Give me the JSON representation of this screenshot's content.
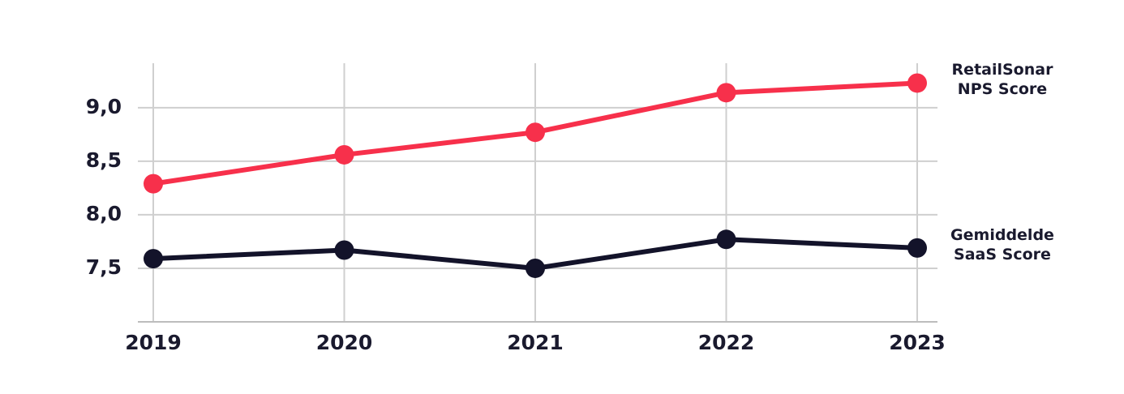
{
  "chart_data": {
    "type": "line",
    "x": [
      2019,
      2020,
      2021,
      2022,
      2023
    ],
    "xlim": [
      2019,
      2023
    ],
    "series": [
      {
        "name": "RetailSonar NPS Score",
        "color": "#f7304b",
        "values": [
          8.29,
          8.56,
          8.77,
          9.14,
          9.23
        ]
      },
      {
        "name": "Gemiddelde SaaS Score",
        "color": "#13132a",
        "values": [
          7.59,
          7.67,
          7.5,
          7.77,
          7.69
        ]
      }
    ],
    "ylim": [
      7.0,
      9.4
    ],
    "yticks": [
      {
        "value": 7.5,
        "label": "7,5"
      },
      {
        "value": 8.0,
        "label": "8,0"
      },
      {
        "value": 8.5,
        "label": "8,5"
      },
      {
        "value": 9.0,
        "label": "9,0"
      }
    ],
    "grid": true
  }
}
